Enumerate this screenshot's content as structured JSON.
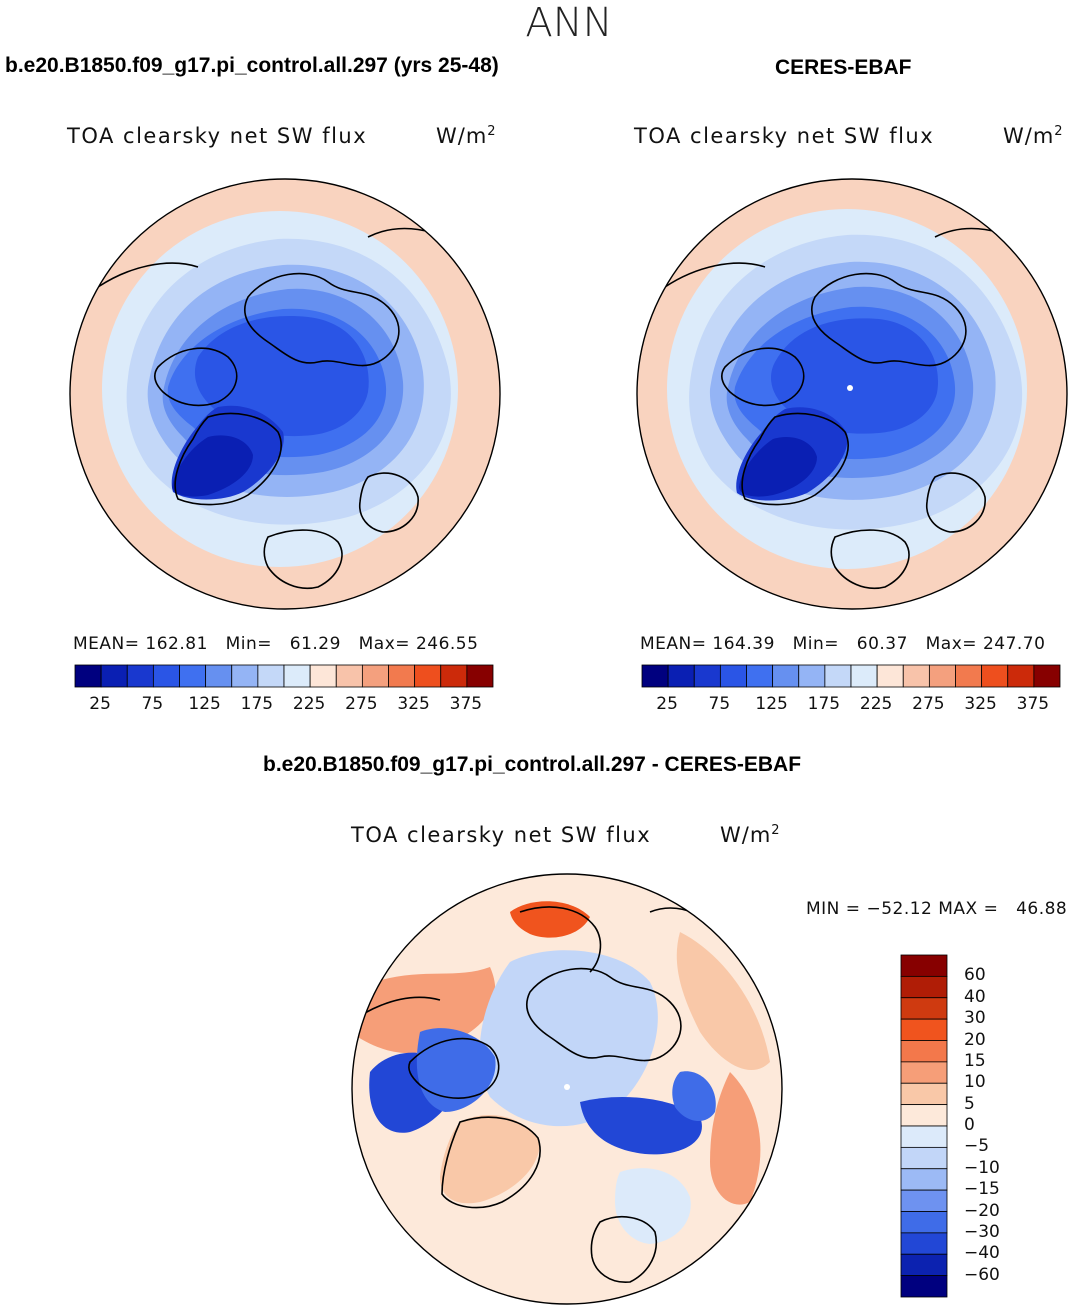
{
  "season": "ANN",
  "panels": [
    {
      "case_title": "b.e20.B1850.f09_g17.pi_control.all.297 (yrs 25-48)",
      "variable": "TOA clearsky net SW flux",
      "units": "W/m",
      "units_exp": "2",
      "stats": {
        "mean_label": "MEAN=",
        "mean": "162.81",
        "min_label": "Min=",
        "min": "61.29",
        "max_label": "Max=",
        "max": "246.55"
      }
    },
    {
      "case_title": "CERES-EBAF",
      "variable": "TOA clearsky net SW flux",
      "units": "W/m",
      "units_exp": "2",
      "stats": {
        "mean_label": "MEAN=",
        "mean": "164.39",
        "min_label": "Min=",
        "min": "60.37",
        "max_label": "Max=",
        "max": "247.70"
      }
    }
  ],
  "diff_panel": {
    "case_title": "b.e20.B1850.f09_g17.pi_control.all.297 - CERES-EBAF",
    "variable": "TOA clearsky net SW flux",
    "units": "W/m",
    "units_exp": "2",
    "range_text": "MIN = −52.12 MAX =   46.88"
  },
  "chart_data": [
    {
      "type": "heatmap",
      "projection": "north polar stereographic",
      "title": "TOA clearsky net SW flux",
      "units": "W/m2",
      "case": "b.e20.B1850.f09_g17.pi_control.all.297 (yrs 25-48)",
      "mean": 162.81,
      "min": 61.29,
      "max": 246.55,
      "colorbar_levels": [
        25,
        50,
        75,
        100,
        125,
        150,
        175,
        200,
        225,
        250,
        275,
        300,
        325,
        350,
        375
      ],
      "colorbar_tick_labels": [
        "25",
        "75",
        "125",
        "175",
        "225",
        "275",
        "325",
        "375"
      ],
      "colorbar_colors": [
        "#00007f",
        "#0a1fb3",
        "#1938cf",
        "#2a55e6",
        "#3f70f0",
        "#6690f0",
        "#94b4f5",
        "#c4d8f8",
        "#dcebfa",
        "#fde6d8",
        "#f8c3aa",
        "#f4a07e",
        "#f27a4e",
        "#ee4f1e",
        "#cc2a0a",
        "#870000"
      ]
    },
    {
      "type": "heatmap",
      "projection": "north polar stereographic",
      "title": "TOA clearsky net SW flux",
      "units": "W/m2",
      "case": "CERES-EBAF",
      "mean": 164.39,
      "min": 60.37,
      "max": 247.7,
      "colorbar_levels": [
        25,
        50,
        75,
        100,
        125,
        150,
        175,
        200,
        225,
        250,
        275,
        300,
        325,
        350,
        375
      ],
      "colorbar_tick_labels": [
        "25",
        "75",
        "125",
        "175",
        "225",
        "275",
        "325",
        "375"
      ],
      "colorbar_colors": [
        "#00007f",
        "#0a1fb3",
        "#1938cf",
        "#2a55e6",
        "#3f70f0",
        "#6690f0",
        "#94b4f5",
        "#c4d8f8",
        "#dcebfa",
        "#fde6d8",
        "#f8c3aa",
        "#f4a07e",
        "#f27a4e",
        "#ee4f1e",
        "#cc2a0a",
        "#870000"
      ]
    },
    {
      "type": "heatmap",
      "projection": "north polar stereographic",
      "title": "TOA clearsky net SW flux",
      "units": "W/m2",
      "case": "b.e20.B1850.f09_g17.pi_control.all.297 - CERES-EBAF",
      "min": -52.12,
      "max": 46.88,
      "colorbar_levels": [
        60,
        40,
        30,
        20,
        15,
        10,
        5,
        0,
        -5,
        -10,
        -15,
        -20,
        -30,
        -40,
        -60
      ],
      "colorbar_tick_labels": [
        "60",
        "40",
        "30",
        "20",
        "15",
        "10",
        "5",
        "0",
        "−5",
        "−10",
        "−15",
        "−20",
        "−30",
        "−40",
        "−60"
      ],
      "colorbar_colors": [
        "#870000",
        "#b01d06",
        "#cf3a10",
        "#f0541e",
        "#f3784b",
        "#f69e78",
        "#f9c8a8",
        "#fde9da",
        "#dceafa",
        "#c2d6f8",
        "#9cbaf5",
        "#6e92f0",
        "#3f6ce8",
        "#2247d6",
        "#0c22b0",
        "#00007f"
      ]
    }
  ]
}
